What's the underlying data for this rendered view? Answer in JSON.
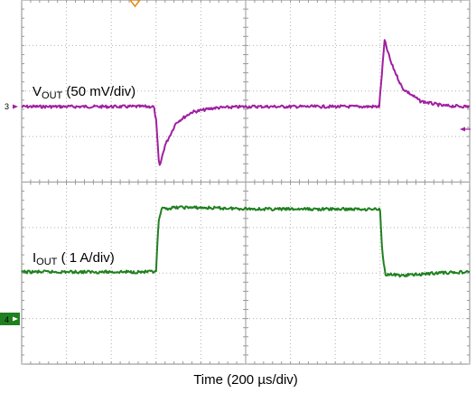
{
  "chart_data": {
    "type": "line",
    "xlabel": "Time (200 µs/div)",
    "x_divisions": 10,
    "y_divisions": 8,
    "grid": true,
    "trigger_marker": "top-center",
    "series": [
      {
        "name": "V",
        "name_sub": "OUT",
        "scale_text": " (50 mV/div)",
        "channel": "3",
        "color": "#a020a0",
        "points": [
          [
            0.0,
            0.0
          ],
          [
            2.95,
            0.0
          ],
          [
            3.0,
            -0.3
          ],
          [
            3.07,
            -1.35
          ],
          [
            3.2,
            -0.85
          ],
          [
            3.45,
            -0.35
          ],
          [
            3.8,
            -0.12
          ],
          [
            4.3,
            -0.03
          ],
          [
            5.0,
            0.0
          ],
          [
            7.98,
            0.0
          ],
          [
            8.03,
            0.6
          ],
          [
            8.1,
            1.45
          ],
          [
            8.25,
            0.95
          ],
          [
            8.5,
            0.4
          ],
          [
            8.9,
            0.12
          ],
          [
            9.4,
            0.02
          ],
          [
            10.0,
            0.0
          ]
        ]
      },
      {
        "name": "I",
        "name_sub": "OUT",
        "scale_text": " ( 1 A/div)",
        "channel": "4",
        "color": "#208020",
        "points": [
          [
            0.0,
            0.0
          ],
          [
            3.0,
            0.0
          ],
          [
            3.05,
            1.05
          ],
          [
            3.12,
            1.38
          ],
          [
            3.5,
            1.42
          ],
          [
            5.5,
            1.38
          ],
          [
            8.0,
            1.38
          ],
          [
            8.05,
            0.4
          ],
          [
            8.12,
            -0.05
          ],
          [
            8.5,
            -0.08
          ],
          [
            9.3,
            -0.02
          ],
          [
            10.0,
            0.0
          ]
        ]
      }
    ]
  }
}
